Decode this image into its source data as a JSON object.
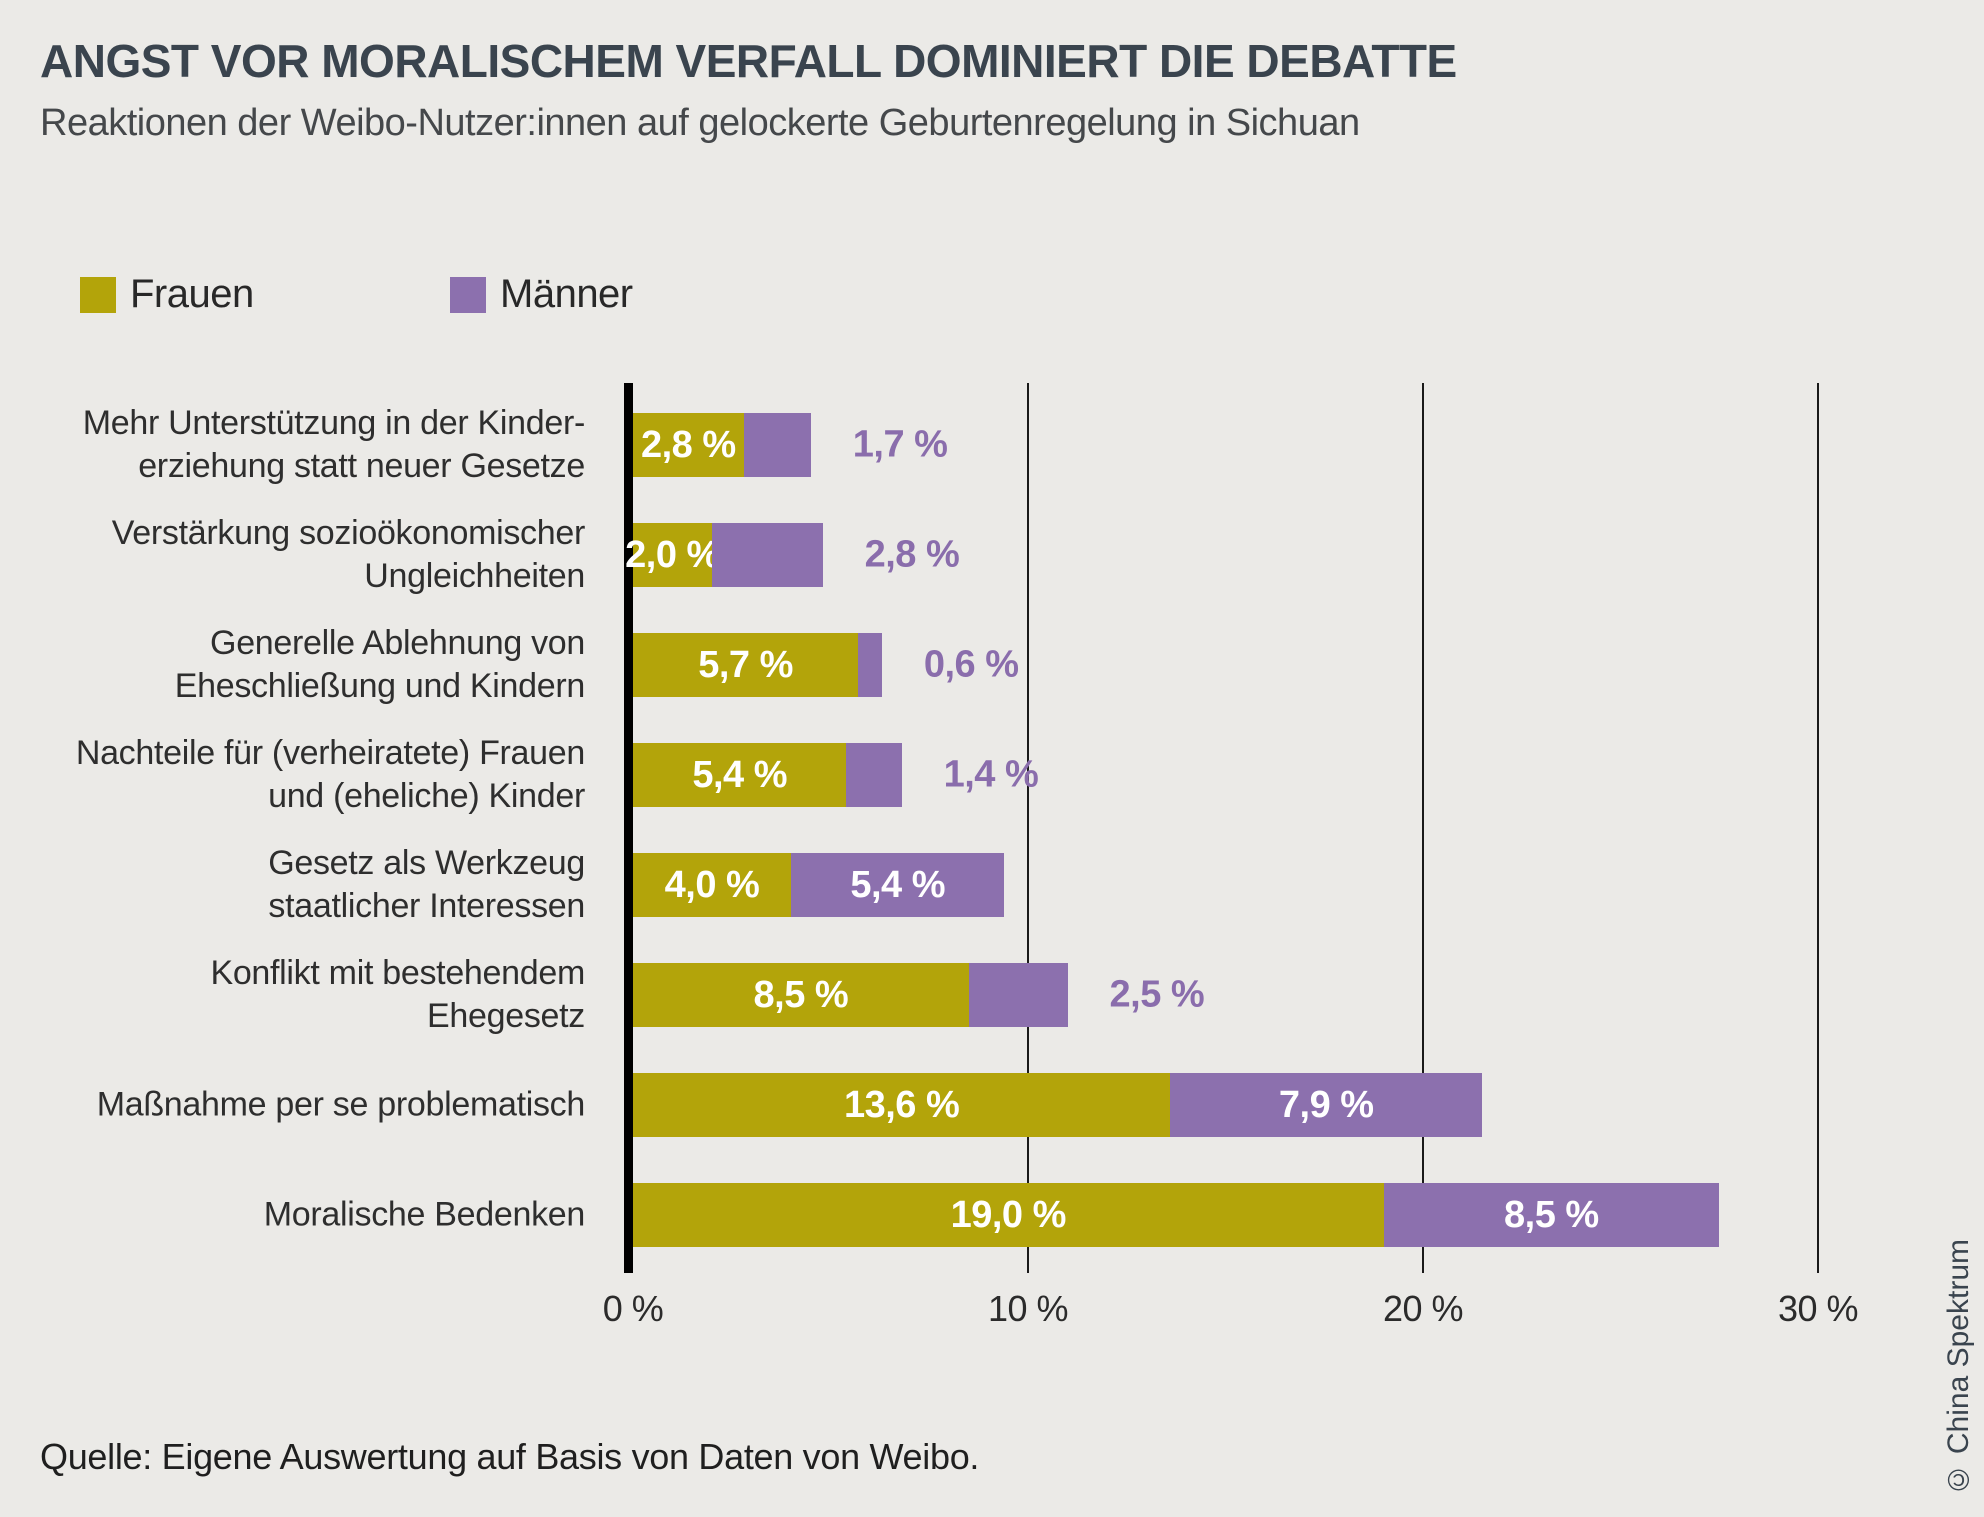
{
  "header": {
    "title": "ANGST VOR MORALISCHEM VERFALL DOMINIERT DIE DEBATTE",
    "subtitle": "Reaktionen der Weibo-Nutzer:innen auf gelockerte Geburtenregelung in Sichuan"
  },
  "colors": {
    "background": "#ebeae7",
    "frauen": "#b3a40a",
    "maenner": "#8c70ae",
    "label_purple": "#8a6dac",
    "title": "#3a444e",
    "axis": "#000000",
    "grid": "#1a1a1a"
  },
  "legend": [
    {
      "label": "Frauen",
      "color": "#b3a40a"
    },
    {
      "label": "Männer",
      "color": "#8c70ae"
    }
  ],
  "chart_data": {
    "type": "bar",
    "orientation": "horizontal",
    "stacked": true,
    "xlim": [
      0,
      30.8
    ],
    "grid": "vertical",
    "x_ticks": [
      {
        "value": 0,
        "label": "0 %"
      },
      {
        "value": 10,
        "label": "10 %"
      },
      {
        "value": 20,
        "label": "20 %"
      },
      {
        "value": 30,
        "label": "30 %"
      }
    ],
    "categories": [
      [
        "Mehr Unterstützung in der Kinder-",
        "erziehung statt neuer Gesetze"
      ],
      [
        "Verstärkung sozioökonomischer",
        "Ungleichheiten"
      ],
      [
        "Generelle Ablehnung von",
        "Eheschließung und Kindern"
      ],
      [
        "Nachteile für (verheiratete) Frauen",
        "und (eheliche) Kinder"
      ],
      [
        "Gesetz als Werkzeug",
        "staatlicher Interessen"
      ],
      [
        "Konflikt mit bestehendem",
        "Ehegesetz"
      ],
      [
        "Maßnahme per se problematisch"
      ],
      [
        "Moralische Bedenken"
      ]
    ],
    "series": [
      {
        "name": "Frauen",
        "color": "#b3a40a",
        "values": [
          2.8,
          2.0,
          5.7,
          5.4,
          4.0,
          8.5,
          13.6,
          19.0
        ],
        "labels": [
          "2,8 %",
          "2,0 %",
          "5,7 %",
          "5,4 %",
          "4,0 %",
          "8,5 %",
          "13,6 %",
          "19,0 %"
        ],
        "label_inside": [
          true,
          true,
          true,
          true,
          true,
          true,
          true,
          true
        ]
      },
      {
        "name": "Männer",
        "color": "#8c70ae",
        "values": [
          1.7,
          2.8,
          0.6,
          1.4,
          5.4,
          2.5,
          7.9,
          8.5
        ],
        "labels": [
          "1,7 %",
          "2,8 %",
          "0,6 %",
          "1,4 %",
          "5,4 %",
          "2,5 %",
          "7,9 %",
          "8,5 %"
        ],
        "label_inside": [
          false,
          false,
          false,
          false,
          true,
          false,
          true,
          true
        ]
      }
    ]
  },
  "footer": {
    "source": "Quelle: Eigene Auswertung auf Basis von Daten von Weibo.",
    "credit": "© China Spektrum"
  }
}
